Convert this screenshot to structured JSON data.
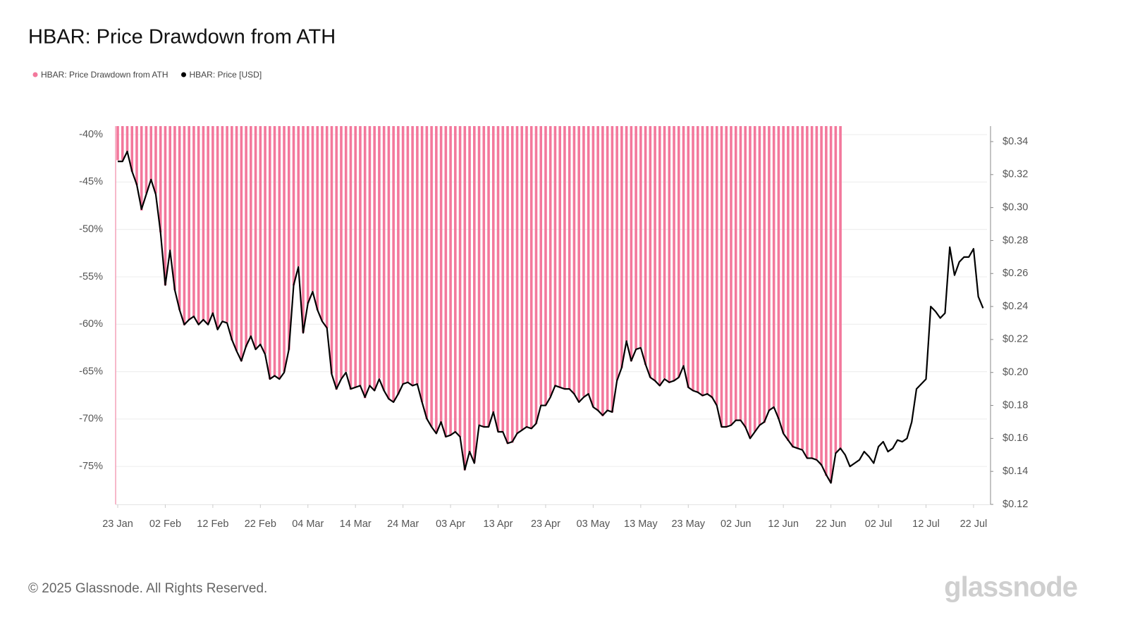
{
  "chart_data": {
    "type": "combo",
    "title": "HBAR: Price Drawdown from ATH",
    "legend_position": "top-left",
    "grid": true,
    "categories": [
      "23 Jan",
      null,
      null,
      null,
      null,
      null,
      null,
      null,
      null,
      null,
      "02 Feb",
      null,
      null,
      null,
      null,
      null,
      null,
      null,
      null,
      null,
      "12 Feb",
      null,
      null,
      null,
      null,
      null,
      null,
      null,
      null,
      null,
      "22 Feb",
      null,
      null,
      null,
      null,
      null,
      null,
      null,
      null,
      null,
      "04 Mar",
      null,
      null,
      null,
      null,
      null,
      null,
      null,
      null,
      null,
      "14 Mar",
      null,
      null,
      null,
      null,
      null,
      null,
      null,
      null,
      null,
      "24 Mar",
      null,
      null,
      null,
      null,
      null,
      null,
      null,
      null,
      null,
      "03 Apr",
      null,
      null,
      null,
      null,
      null,
      null,
      null,
      null,
      null,
      "13 Apr",
      null,
      null,
      null,
      null,
      null,
      null,
      null,
      null,
      null,
      "23 Apr",
      null,
      null,
      null,
      null,
      null,
      null,
      null,
      null,
      null,
      "03 May",
      null,
      null,
      null,
      null,
      null,
      null,
      null,
      null,
      null,
      "13 May",
      null,
      null,
      null,
      null,
      null,
      null,
      null,
      null,
      null,
      "23 May",
      null,
      null,
      null,
      null,
      null,
      null,
      null,
      null,
      null,
      "02 Jun",
      null,
      null,
      null,
      null,
      null,
      null,
      null,
      null,
      null,
      "12 Jun",
      null,
      null,
      null,
      null,
      null,
      null,
      null,
      null,
      null,
      "22 Jun",
      null,
      null,
      null,
      null,
      null,
      null,
      null,
      null,
      null,
      "02 Jul",
      null,
      null,
      null,
      null,
      null,
      null,
      null,
      null,
      null,
      "12 Jul",
      null,
      null,
      null,
      null,
      null,
      null,
      null,
      null,
      null,
      "22 Jul",
      null,
      null
    ],
    "series": [
      {
        "name": "HBAR: Price Drawdown from ATH",
        "type": "bar",
        "color": "#f3789c",
        "values": [
          -42.7,
          -42.7,
          -41.8,
          -43.9,
          -45.3,
          -48.0,
          -46.2,
          -44.8,
          -46.2,
          -50.3,
          -55.9,
          -52.2,
          -56.4,
          -58.5,
          -60.1,
          -59.5,
          -59.2,
          -60.0,
          -59.5,
          -60.0,
          -58.9,
          -60.5,
          -59.6,
          -59.8,
          -61.7,
          -62.8,
          -63.9,
          -62.4,
          -61.3,
          -62.6,
          -62.2,
          -63.1,
          -65.8,
          -65.4,
          -65.8,
          -65.0,
          -62.7,
          -55.9,
          -53.9,
          -60.9,
          -57.8,
          -56.5,
          -58.5,
          -59.6,
          -60.4,
          -65.2,
          -66.9,
          -65.7,
          -65.0,
          -66.9,
          -66.7,
          -66.5,
          -67.8,
          -66.5,
          -67.0,
          -65.7,
          -67.0,
          -67.9,
          -68.2,
          -67.4,
          -66.3,
          -66.1,
          -66.5,
          -66.3,
          -68.2,
          -70.0,
          -70.8,
          -71.5,
          -70.4,
          -71.9,
          -71.7,
          -71.4,
          -71.9,
          -75.4,
          -73.5,
          -74.6,
          -70.6,
          -70.8,
          -70.8,
          -69.3,
          -71.3,
          -71.3,
          -72.6,
          -72.5,
          -71.5,
          -71.1,
          -70.8,
          -71.0,
          -70.5,
          -68.5,
          -68.5,
          -67.6,
          -66.5,
          -66.7,
          -66.8,
          -66.8,
          -67.4,
          -68.2,
          -67.6,
          -67.4,
          -68.7,
          -69.1,
          -69.7,
          -69.1,
          -69.3,
          -65.9,
          -64.6,
          -61.8,
          -63.9,
          -62.6,
          -62.4,
          -64.3,
          -65.6,
          -65.9,
          -66.5,
          -65.7,
          -66.2,
          -65.9,
          -65.6,
          -64.4,
          -66.7,
          -67.0,
          -67.2,
          -67.6,
          -67.4,
          -67.8,
          -68.5,
          -70.8,
          -70.8,
          -70.6,
          -70.2,
          -70.2,
          -70.9,
          -72.0,
          -71.3,
          -70.6,
          -70.4,
          -69.1,
          -68.7,
          -70.0,
          -71.5,
          -72.3,
          -73.0,
          -73.1,
          -73.2,
          -74.1,
          -74.2,
          -74.2,
          -74.9,
          -76.0,
          -76.7,
          -73.6,
          -73.1,
          null,
          null,
          null,
          null,
          null,
          null,
          null,
          null,
          null,
          null,
          null,
          null,
          null,
          null,
          null,
          null,
          null,
          null,
          null,
          null,
          null,
          null,
          null,
          null,
          null,
          null,
          null,
          null,
          null,
          null
        ]
      },
      {
        "name": "HBAR: Price [USD]",
        "type": "line",
        "color": "#000000",
        "axis": "y2",
        "values": [
          0.328,
          0.328,
          0.334,
          0.322,
          0.314,
          0.299,
          0.308,
          0.317,
          0.308,
          0.285,
          0.253,
          0.274,
          0.25,
          0.238,
          0.229,
          0.232,
          0.234,
          0.229,
          0.232,
          0.229,
          0.236,
          0.226,
          0.231,
          0.23,
          0.22,
          0.213,
          0.207,
          0.216,
          0.222,
          0.214,
          0.217,
          0.211,
          0.196,
          0.198,
          0.196,
          0.2,
          0.214,
          0.253,
          0.264,
          0.224,
          0.242,
          0.249,
          0.238,
          0.231,
          0.227,
          0.199,
          0.19,
          0.196,
          0.2,
          0.19,
          0.191,
          0.192,
          0.185,
          0.192,
          0.189,
          0.196,
          0.189,
          0.184,
          0.182,
          0.187,
          0.193,
          0.194,
          0.192,
          0.193,
          0.182,
          0.172,
          0.167,
          0.163,
          0.17,
          0.161,
          0.162,
          0.164,
          0.161,
          0.141,
          0.152,
          0.145,
          0.168,
          0.167,
          0.167,
          0.176,
          0.164,
          0.164,
          0.157,
          0.158,
          0.163,
          0.165,
          0.167,
          0.166,
          0.169,
          0.18,
          0.18,
          0.185,
          0.192,
          0.191,
          0.19,
          0.19,
          0.187,
          0.182,
          0.185,
          0.187,
          0.179,
          0.177,
          0.174,
          0.177,
          0.176,
          0.195,
          0.203,
          0.219,
          0.207,
          0.214,
          0.215,
          0.205,
          0.197,
          0.195,
          0.192,
          0.196,
          0.194,
          0.195,
          0.197,
          0.204,
          0.191,
          0.189,
          0.188,
          0.186,
          0.187,
          0.185,
          0.18,
          0.167,
          0.167,
          0.168,
          0.171,
          0.171,
          0.167,
          0.16,
          0.164,
          0.168,
          0.17,
          0.177,
          0.179,
          0.172,
          0.163,
          0.159,
          0.155,
          0.154,
          0.153,
          0.148,
          0.148,
          0.147,
          0.144,
          0.138,
          0.133,
          0.151,
          0.154,
          0.15,
          0.143,
          0.145,
          0.147,
          0.152,
          0.149,
          0.145,
          0.155,
          0.158,
          0.152,
          0.154,
          0.159,
          0.158,
          0.16,
          0.17,
          0.19,
          0.193,
          0.196,
          0.24,
          0.237,
          0.233,
          0.236,
          0.276,
          0.259,
          0.267,
          0.27,
          0.27,
          0.275,
          0.246,
          0.239
        ]
      }
    ],
    "ylim": [
      -79,
      -39.1
    ],
    "yticks": [
      {
        "value": -40,
        "label": "-40%"
      },
      {
        "value": -45,
        "label": "-45%"
      },
      {
        "value": -50,
        "label": "-50%"
      },
      {
        "value": -55,
        "label": "-55%"
      },
      {
        "value": -60,
        "label": "-60%"
      },
      {
        "value": -65,
        "label": "-65%"
      },
      {
        "value": -70,
        "label": "-70%"
      },
      {
        "value": -75,
        "label": "-75%"
      }
    ],
    "y2lim": [
      0.12,
      0.3494
    ],
    "y2ticks": [
      {
        "value": 0.12,
        "label": "$0.12"
      },
      {
        "value": 0.14,
        "label": "$0.14"
      },
      {
        "value": 0.16,
        "label": "$0.16"
      },
      {
        "value": 0.18,
        "label": "$0.18"
      },
      {
        "value": 0.2,
        "label": "$0.20"
      },
      {
        "value": 0.22,
        "label": "$0.22"
      },
      {
        "value": 0.24,
        "label": "$0.24"
      },
      {
        "value": 0.26,
        "label": "$0.26"
      },
      {
        "value": 0.28,
        "label": "$0.28"
      },
      {
        "value": 0.3,
        "label": "$0.30"
      },
      {
        "value": 0.32,
        "label": "$0.32"
      },
      {
        "value": 0.34,
        "label": "$0.34"
      }
    ]
  },
  "footer": {
    "copyright": "© 2025 Glassnode. All Rights Reserved.",
    "brand": "glassnode"
  }
}
